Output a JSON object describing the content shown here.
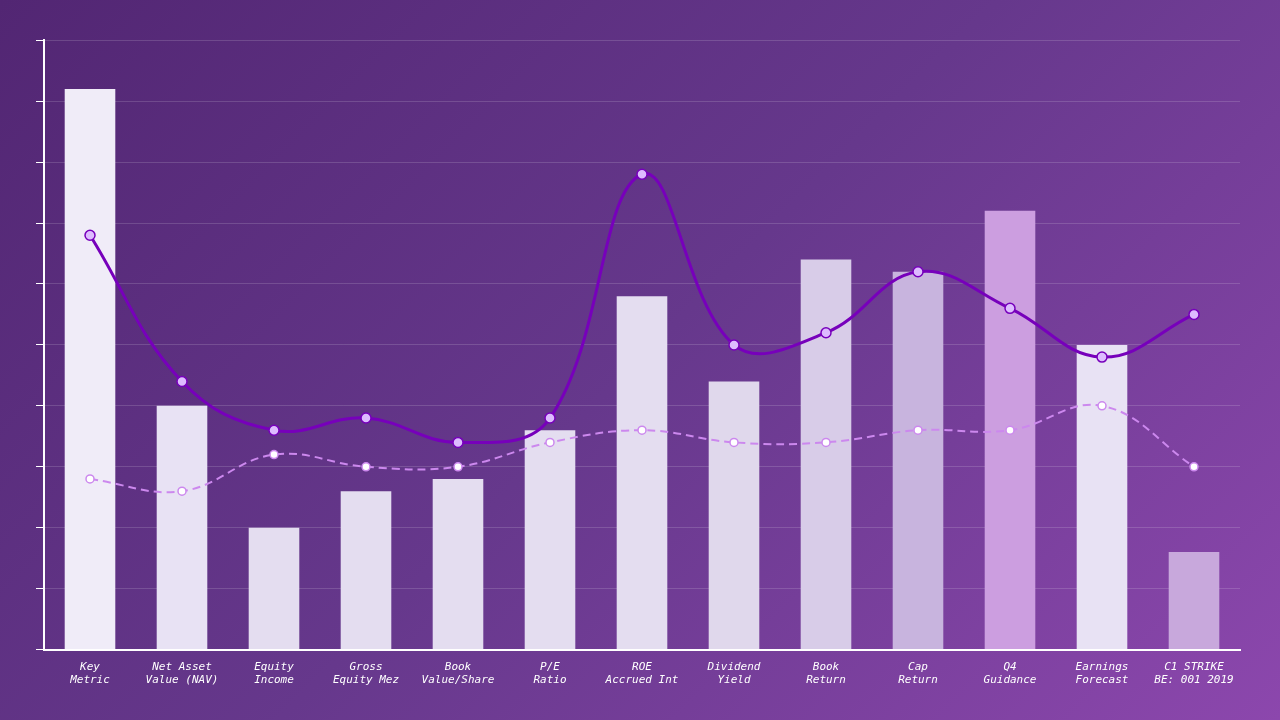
{
  "chart_data": {
    "type": "bar",
    "categories": [
      "Key\nMetric",
      "Net Asset\nValue (NAV)",
      "Equity\nIncome",
      "Gross\nEquity Mez",
      "Book\nValue/Share",
      "P/E\nRatio",
      "ROE\nAccrued Int",
      "Dividend\nYield",
      "Book\nReturn",
      "Cap\nReturn",
      "Q4\nGuidance",
      "Earnings\nForecast",
      "C1 STRIKE\nBE: 001 2019"
    ],
    "series": [
      {
        "type": "bar",
        "values": [
          92,
          40,
          20,
          26,
          28,
          36,
          58,
          44,
          64,
          62,
          72,
          50,
          16
        ],
        "colors": [
          "#f0ecf8",
          "#e8e2f4",
          "#e4ddf0",
          "#e4ddf0",
          "#e4ddf0",
          "#e4ddf0",
          "#e4ddf0",
          "#e0d8ec",
          "#d8cce8",
          "#c8b4de",
          "#cc9ee0",
          "#e8e2f4",
          "#c8a8dc"
        ]
      },
      {
        "type": "line",
        "values": [
          68,
          44,
          36,
          38,
          34,
          38,
          78,
          50,
          52,
          62,
          56,
          48,
          55
        ],
        "color": "#7700bb",
        "marker": "circle",
        "line_style": "solid"
      },
      {
        "type": "line",
        "values": [
          28,
          26,
          32,
          30,
          30,
          34,
          36,
          34,
          34,
          36,
          36,
          40,
          30
        ],
        "color": "#cc88ee",
        "marker": "circle",
        "line_style": "dashed"
      }
    ],
    "ylim": [
      0,
      100
    ],
    "yticks": [
      0,
      10,
      20,
      30,
      40,
      50,
      60,
      70,
      80,
      90,
      100
    ],
    "grid": true,
    "tick_labels": "x"
  }
}
